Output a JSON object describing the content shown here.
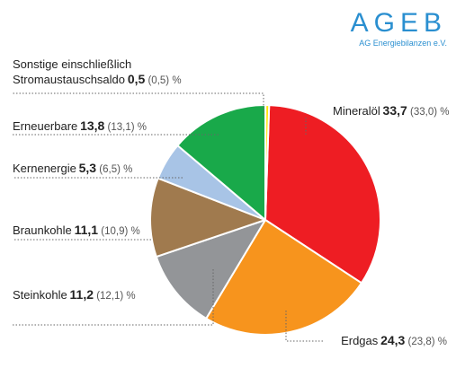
{
  "brand": {
    "name": "AGEB",
    "subtitle": "AG Energiebilanzen e.V.",
    "color": "#2a8fd0"
  },
  "unit": "%",
  "chart_data": {
    "type": "pie",
    "start_angle_deg": 1.9,
    "direction": "clockwise",
    "slices": [
      {
        "name": "Mineralöl",
        "value": 33.7,
        "value_label": "33,7",
        "prev_label": "(33,0)",
        "color": "#ee1d23"
      },
      {
        "name": "Erdgas",
        "value": 24.3,
        "value_label": "24,3",
        "prev_label": "(23,8)",
        "color": "#f7941d"
      },
      {
        "name": "Steinkohle",
        "value": 11.2,
        "value_label": "11,2",
        "prev_label": "(12,1)",
        "color": "#939598"
      },
      {
        "name": "Braunkohle",
        "value": 11.1,
        "value_label": "11,1",
        "prev_label": "(10,9)",
        "color": "#a07a4e"
      },
      {
        "name": "Kernenergie",
        "value": 5.3,
        "value_label": "5,3",
        "prev_label": "(6,5)",
        "color": "#a8c4e6"
      },
      {
        "name": "Erneuerbare",
        "value": 13.8,
        "value_label": "13,8",
        "prev_label": "(13,1)",
        "color": "#19a94a"
      },
      {
        "name": "Sonstige einschließlich Stromaustauschsaldo",
        "value": 0.5,
        "value_label": "0,5",
        "prev_label": "(0,5)",
        "color": "#ffe600",
        "name_lines": [
          "Sonstige einschließlich",
          "Stromaustauschsaldo"
        ]
      }
    ]
  }
}
